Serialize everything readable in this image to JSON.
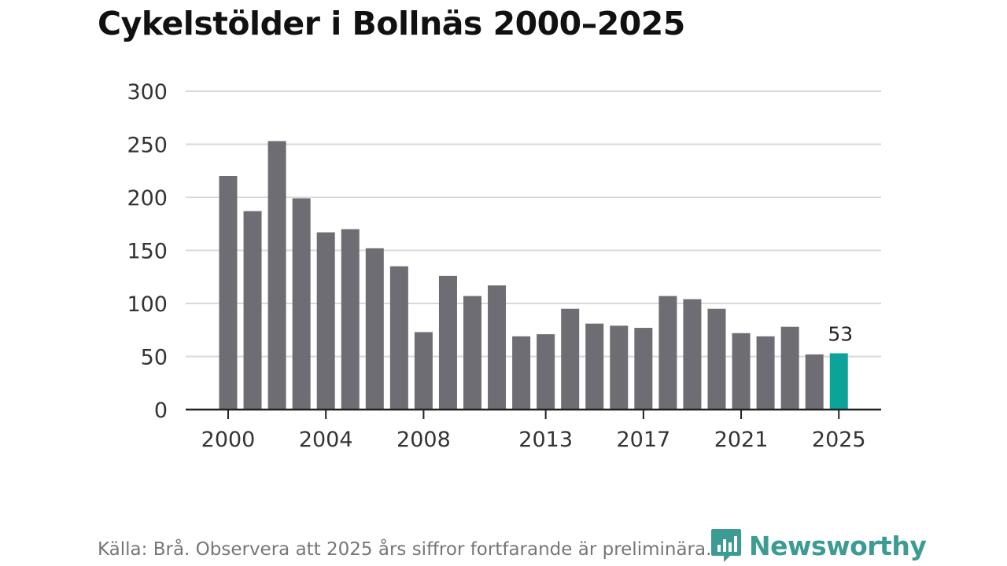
{
  "title": "Cykelstölder i Bollnäs 2000–2025",
  "source": "Källa: Brå. Observera att 2025 års siffror fortfarande är preliminära.",
  "brand": {
    "name": "Newsworthy",
    "icon": "newsworthy-bar-chart-logo-icon",
    "color": "#3c9c94"
  },
  "chart_data": {
    "type": "bar",
    "title": "Cykelstölder i Bollnäs 2000–2025",
    "xlabel": "",
    "ylabel": "",
    "categories": [
      2000,
      2001,
      2002,
      2003,
      2004,
      2005,
      2006,
      2007,
      2008,
      2009,
      2010,
      2011,
      2012,
      2013,
      2014,
      2015,
      2016,
      2017,
      2018,
      2019,
      2020,
      2021,
      2022,
      2023,
      2024,
      2025
    ],
    "values": [
      220,
      187,
      253,
      199,
      167,
      170,
      152,
      135,
      73,
      126,
      107,
      117,
      69,
      71,
      95,
      81,
      79,
      77,
      107,
      104,
      95,
      72,
      69,
      78,
      52,
      53
    ],
    "x_tick_labels": [
      "2000",
      "2004",
      "2008",
      "2013",
      "2017",
      "2021",
      "2025"
    ],
    "y_ticks": [
      0,
      50,
      100,
      150,
      200,
      250,
      300
    ],
    "ylim": [
      0,
      300
    ],
    "grid": true,
    "highlight": {
      "category": 2025,
      "label": "53",
      "color": "#0ca39a"
    },
    "bar_color": "#6e6d73"
  }
}
